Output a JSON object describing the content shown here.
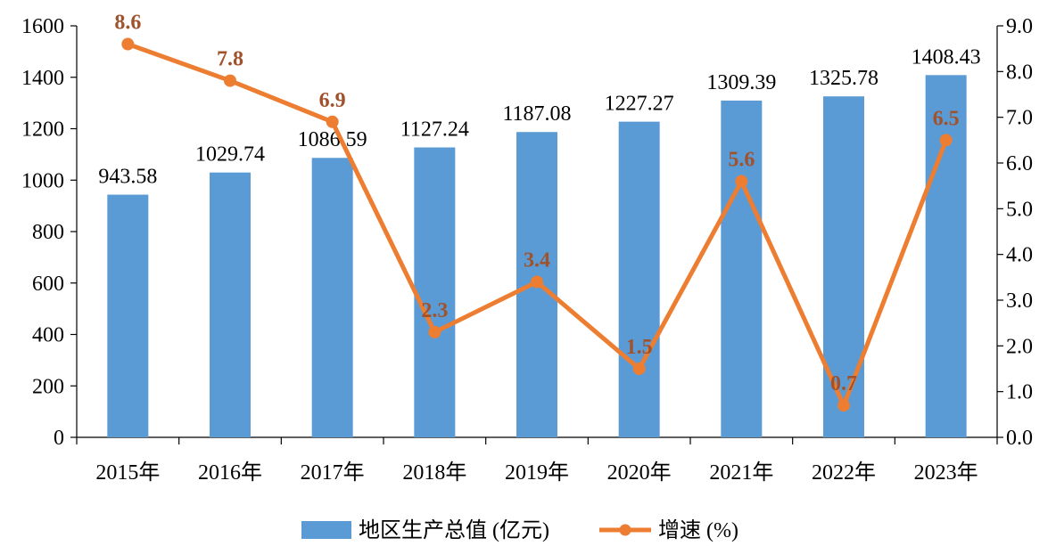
{
  "chart_data": {
    "type": "bar",
    "categories": [
      "2015年",
      "2016年",
      "2017年",
      "2018年",
      "2019年",
      "2020年",
      "2021年",
      "2022年",
      "2023年"
    ],
    "series": [
      {
        "name": "地区生产总值 (亿元)",
        "type": "bar",
        "axis": "left",
        "values": [
          943.58,
          1029.74,
          1086.59,
          1127.24,
          1187.08,
          1227.27,
          1309.39,
          1325.78,
          1408.43
        ],
        "labels": [
          "943.58",
          "1029.74",
          "1086.59",
          "1127.24",
          "1187.08",
          "1227.27",
          "1309.39",
          "1325.78",
          "1408.43"
        ],
        "color": "#5B9BD5"
      },
      {
        "name": "增速 (%)",
        "type": "line",
        "axis": "right",
        "values": [
          8.6,
          7.8,
          6.9,
          2.3,
          3.4,
          1.5,
          5.6,
          0.7,
          6.5
        ],
        "labels": [
          "8.6",
          "7.8",
          "6.9",
          "2.3",
          "3.4",
          "1.5",
          "5.6",
          "0.7",
          "6.5"
        ],
        "color": "#ED7D31",
        "label_color": "#A0522D"
      }
    ],
    "y_left": {
      "lim": [
        0,
        1600
      ],
      "ticks": [
        "0",
        "200",
        "400",
        "600",
        "800",
        "1000",
        "1200",
        "1400",
        "1600"
      ]
    },
    "y_right": {
      "lim": [
        0,
        9
      ],
      "ticks": [
        "0.0",
        "1.0",
        "2.0",
        "3.0",
        "4.0",
        "5.0",
        "6.0",
        "7.0",
        "8.0",
        "9.0"
      ]
    },
    "grid": false,
    "legend": {
      "position": "bottom-center"
    }
  }
}
